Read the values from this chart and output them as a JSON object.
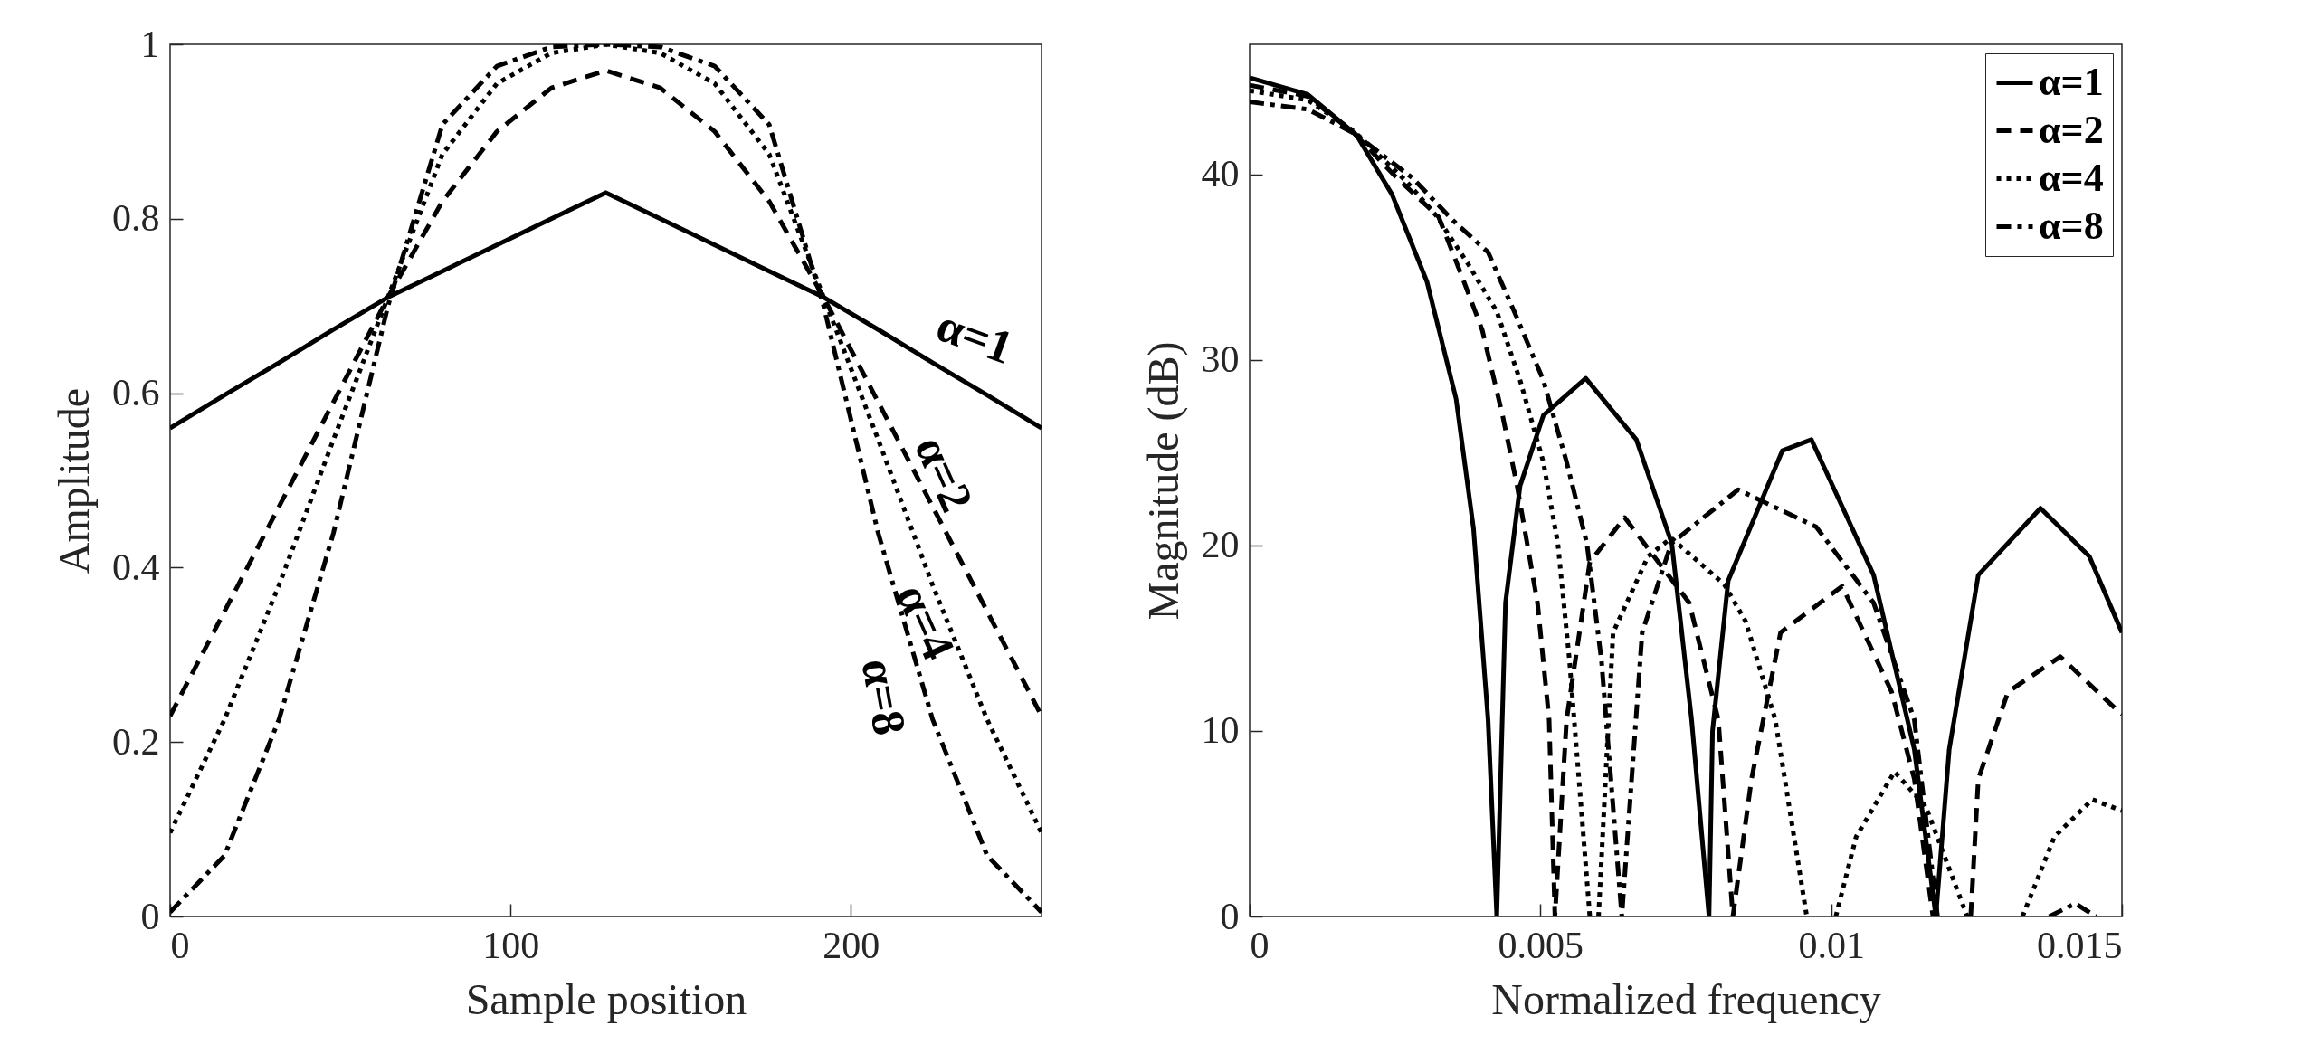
{
  "chart_data": [
    {
      "type": "line",
      "xlabel": "Sample position",
      "ylabel": "Amplitude",
      "xlim": [
        0,
        256
      ],
      "xticks": [
        0,
        100,
        200
      ],
      "ylim": [
        0,
        1
      ],
      "yticks": [
        0,
        0.2,
        0.4,
        0.6,
        0.8,
        1
      ],
      "x": [
        0,
        16,
        32,
        48,
        64,
        80,
        96,
        112,
        128,
        144,
        160,
        176,
        192,
        208,
        224,
        240,
        256
      ],
      "series": [
        {
          "name": "α=1",
          "color": "#000000",
          "line_style": "solid",
          "values": [
            0.56,
            0.598,
            0.635,
            0.673,
            0.71,
            0.74,
            0.77,
            0.8,
            0.83,
            0.8,
            0.77,
            0.74,
            0.71,
            0.673,
            0.635,
            0.598,
            0.56
          ]
        },
        {
          "name": "α=2",
          "color": "#000000",
          "line_style": "dashed",
          "values": [
            0.23,
            0.35,
            0.47,
            0.59,
            0.71,
            0.82,
            0.9,
            0.95,
            0.97,
            0.95,
            0.9,
            0.82,
            0.71,
            0.59,
            0.47,
            0.35,
            0.23
          ]
        },
        {
          "name": "α=4",
          "color": "#000000",
          "line_style": "dotted",
          "values": [
            0.096,
            0.226,
            0.38,
            0.547,
            0.71,
            0.874,
            0.955,
            0.99,
            1,
            0.99,
            0.955,
            0.874,
            0.71,
            0.547,
            0.38,
            0.226,
            0.096
          ]
        },
        {
          "name": "α=8",
          "color": "#000000",
          "line_style": "dashdot",
          "values": [
            0.005,
            0.07,
            0.226,
            0.44,
            0.7,
            0.908,
            0.975,
            0.997,
            1,
            0.997,
            0.975,
            0.908,
            0.7,
            0.44,
            0.226,
            0.07,
            0.005
          ]
        }
      ]
    },
    {
      "type": "line",
      "xlabel": "Normalized frequency",
      "ylabel": "Magnitude (dB)",
      "xlim": [
        0,
        0.015
      ],
      "xticks": [
        0,
        0.005,
        0.01,
        0.015
      ],
      "ylim": [
        0,
        47
      ],
      "yticks": [
        0,
        10,
        20,
        30,
        40
      ],
      "legend": "top right",
      "series": [
        {
          "name": "α=1",
          "color": "#000000",
          "line_style": "solid",
          "x": [
            0,
            0.001,
            0.00184,
            0.00245,
            0.00305,
            0.00355,
            0.00385,
            0.0041,
            0.00425,
            0.0044,
            0.00465,
            0.00505,
            0.00578,
            0.00665,
            0.00726,
            0.0076,
            0.0079,
            0.00796,
            0.00823,
            0.00916,
            0.00966,
            0.01073,
            0.01143,
            0.0118,
            0.01203,
            0.01253,
            0.0136,
            0.01444,
            0.015
          ],
          "values": [
            45.2,
            44.3,
            42.1,
            38.9,
            34.2,
            27.9,
            20.9,
            10.6,
            0,
            16.9,
            23.2,
            27,
            29,
            25.7,
            20.1,
            10.6,
            0,
            10,
            18.1,
            25.1,
            25.7,
            18.4,
            9,
            0,
            9,
            18.4,
            22,
            19.4,
            15.3
          ]
        },
        {
          "name": "α=2",
          "color": "#000000",
          "line_style": "dashed",
          "x": [
            0,
            0.001,
            0.0018,
            0.0025,
            0.00325,
            0.00365,
            0.004,
            0.00435,
            0.0046,
            0.00495,
            0.00515,
            0.00525,
            0.00545,
            0.00585,
            0.00645,
            0.00756,
            0.00806,
            0.00831,
            0.00863,
            0.00913,
            0.01019,
            0.01104,
            0.01143,
            0.01175,
            0.0121,
            0.0124,
            0.01253,
            0.01304,
            0.01394,
            0.01489,
            0.015
          ],
          "values": [
            44.8,
            44.2,
            42.2,
            39.9,
            37.7,
            34.5,
            31.6,
            27,
            23.2,
            16.9,
            10.6,
            0,
            10.6,
            19.1,
            21.5,
            16.9,
            10.6,
            0,
            7.4,
            15.3,
            17.8,
            12.1,
            7.4,
            0,
            null,
            0,
            7.4,
            12.1,
            14,
            11.2,
            10.9
          ]
        },
        {
          "name": "α=4",
          "color": "#000000",
          "line_style": "dotted",
          "x": [
            0,
            0.001,
            0.0018,
            0.0027,
            0.0032,
            0.00375,
            0.00425,
            0.00465,
            0.00505,
            0.0053,
            0.0055,
            0.00585,
            0.0059,
            0.006,
            0.00625,
            0.00685,
            0.00725,
            0.00816,
            0.00853,
            0.00904,
            0.00958,
            0.0098,
            0.01008,
            0.01043,
            0.01109,
            0.01163,
            0.01234,
            0.0128,
            0.01329,
            0.01384,
            0.01449,
            0.015
          ],
          "values": [
            44.5,
            44,
            42.3,
            39.6,
            37.8,
            35.2,
            32.6,
            28.9,
            24.5,
            20.1,
            13.8,
            0,
            null,
            0,
            15.3,
            19.4,
            20.4,
            17.9,
            15.9,
            10.6,
            0,
            null,
            0,
            4.3,
            7.8,
            5.9,
            0,
            null,
            0,
            4.3,
            6.3,
            5.7
          ]
        },
        {
          "name": "α=8",
          "color": "#000000",
          "line_style": "dashdot",
          "x": [
            0,
            0.001,
            0.0018,
            0.0028,
            0.0035,
            0.0041,
            0.00455,
            0.00505,
            0.00545,
            0.0058,
            0.00605,
            0.0064,
            0.00675,
            0.00725,
            0.0084,
            0.00974,
            0.01073,
            0.01143,
            0.01183,
            0.0128,
            0.01375,
            0.0142,
            0.01455
          ],
          "values": [
            43.9,
            43.5,
            42.2,
            39.8,
            37.5,
            35.8,
            32.6,
            28.9,
            24.5,
            20.1,
            13.8,
            0,
            15.3,
            20.1,
            23,
            21,
            16.9,
            10.6,
            0,
            null,
            0,
            0.7,
            0
          ]
        }
      ]
    }
  ]
}
